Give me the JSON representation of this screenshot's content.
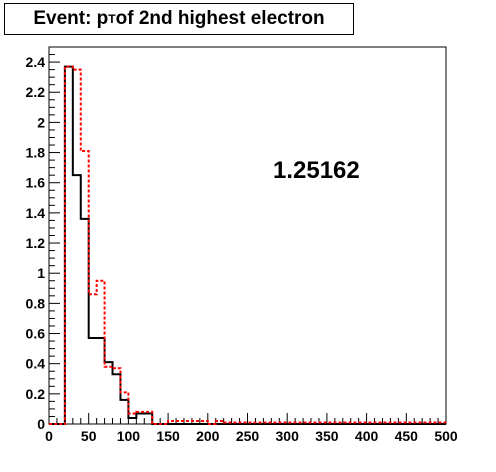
{
  "title": {
    "prefix": "Event: p",
    "subscript": "T",
    "suffix": " of 2nd highest electron"
  },
  "chart_data": {
    "type": "histogram",
    "title": "Event: pT of 2nd highest electron",
    "xlim": [
      0,
      500
    ],
    "ylim": [
      0,
      2.5
    ],
    "x_ticks": [
      0,
      50,
      100,
      150,
      200,
      250,
      300,
      350,
      400,
      450,
      500
    ],
    "y_ticks": [
      0,
      0.2,
      0.4,
      0.6,
      0.8,
      1,
      1.2,
      1.4,
      1.6,
      1.8,
      2,
      2.2,
      2.4
    ],
    "annotation": "1.25162",
    "bin_width": 10,
    "bin_edges_start": 0,
    "series": [
      {
        "color": "#000000",
        "style": "solid",
        "values": [
          0,
          0,
          2.37,
          1.65,
          1.36,
          0.57,
          0.57,
          0.41,
          0.33,
          0.16,
          0.04,
          0.07,
          0.07,
          0,
          0,
          0,
          0,
          0,
          0,
          0,
          0,
          0,
          0,
          0,
          0,
          0,
          0,
          0,
          0,
          0,
          0,
          0,
          0,
          0,
          0,
          0,
          0,
          0,
          0,
          0,
          0,
          0,
          0,
          0,
          0,
          0,
          0,
          0,
          0,
          0
        ]
      },
      {
        "color": "#ff0000",
        "style": "dashed",
        "values": [
          0,
          0,
          2.37,
          2.35,
          1.81,
          0.86,
          0.95,
          0.38,
          0.37,
          0.21,
          0.07,
          0.08,
          0.08,
          0,
          0,
          0.02,
          0.02,
          0.02,
          0.02,
          0.02,
          0,
          0.02,
          0.01,
          0.01,
          0.01,
          0.01,
          0.01,
          0.01,
          0.01,
          0.01,
          0.01,
          0.01,
          0.01,
          0.01,
          0.01,
          0.01,
          0.01,
          0.01,
          0.01,
          0.01,
          0.01,
          0.01,
          0.01,
          0.01,
          0.01,
          0.01,
          0.01,
          0.01,
          0.01,
          0.01
        ]
      }
    ]
  }
}
